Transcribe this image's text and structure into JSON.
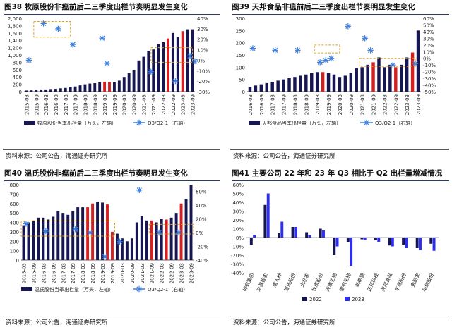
{
  "chart_data": [
    {
      "id": "p1",
      "type": "bar",
      "title": "图38 牧原股份非瘟前后二三季度出栏节奏明显发生变化",
      "categories": [
        "2015-03",
        "2015-06",
        "2015-09",
        "2015-12",
        "2016-03",
        "2016-06",
        "2016-09",
        "2016-12",
        "2017-03",
        "2017-06",
        "2017-09",
        "2017-12",
        "2018-03",
        "2018-06",
        "2018-09",
        "2018-12",
        "2019-03",
        "2019-06",
        "2019-09",
        "2019-12",
        "2020-03",
        "2020-06",
        "2020-09",
        "2020-12",
        "2021-03",
        "2021-06",
        "2021-09",
        "2021-12",
        "2022-03",
        "2022-06",
        "2022-09",
        "2022-12",
        "2023-03",
        "2023-06",
        "2023-09"
      ],
      "tick_labels": [
        "2015-03",
        "2015-09",
        "2016-03",
        "2016-09",
        "2017-03",
        "2017-09",
        "2018-03",
        "2018-09",
        "2019-03",
        "2019-09",
        "2020-03",
        "2020-09",
        "2021-03",
        "2021-09",
        "2022-03",
        "2022-09",
        "2023-03",
        "2023-09"
      ],
      "values": [
        30,
        35,
        45,
        60,
        60,
        70,
        75,
        90,
        100,
        120,
        140,
        170,
        200,
        220,
        230,
        260,
        270,
        260,
        250,
        300,
        400,
        500,
        580,
        850,
        950,
        1100,
        1150,
        1300,
        1350,
        1450,
        1600,
        1500,
        1650,
        1700,
        1700
      ],
      "highlight": [
        16,
        17,
        27,
        28,
        29,
        30,
        31,
        32,
        33,
        34
      ],
      "red": [
        16,
        17,
        29,
        32
      ],
      "line_values": [
        0,
        35,
        30,
        15,
        21,
        -3,
        -11,
        -20,
        4,
        -1
      ],
      "line_positions": [
        1,
        4,
        7,
        10,
        16,
        17,
        26,
        31,
        34,
        35
      ],
      "ylim_left": [
        0,
        2000
      ],
      "yticks_left": [
        0,
        200,
        400,
        600,
        800,
        1000,
        1200,
        1400,
        1600,
        1800,
        2000
      ],
      "ylim_right": [
        -30,
        40
      ],
      "yticks_right": [
        "40%",
        "30%",
        "20%",
        "10%",
        "0%",
        "-10%",
        "-20%",
        "-30%"
      ],
      "legend": [
        "牧原股份当季出栏量（万头，左轴）",
        "Q3/Q2-1（右轴）"
      ],
      "source": "资料来源：公司公告，海通证券研究所"
    },
    {
      "id": "p2",
      "type": "bar",
      "title": "图39 天邦食品非瘟前后二三季度出栏节奏明显发生变化",
      "categories": [
        "2016-03",
        "2016-06",
        "2016-09",
        "2016-12",
        "2017-03",
        "2017-06",
        "2017-09",
        "2017-12",
        "2018-03",
        "2018-06",
        "2018-09",
        "2018-12",
        "2019-03",
        "2019-06",
        "2019-09",
        "2019-12",
        "2020-03",
        "2020-06",
        "2020-09",
        "2020-12",
        "2021-03",
        "2021-06",
        "2021-09",
        "2021-12",
        "2022-03",
        "2022-06",
        "2022-09",
        "2022-12",
        "2023-03",
        "2023-06",
        "2023-09"
      ],
      "tick_labels": [
        "2016-03",
        "2016-09",
        "2017-03",
        "2017-09",
        "2018-03",
        "2018-09",
        "2019-03",
        "2019-09",
        "2020-03",
        "2020-09",
        "2021-03",
        "2021-09",
        "2022-03",
        "2022-09",
        "2023-03",
        "2023-09"
      ],
      "values": [
        20,
        25,
        30,
        35,
        40,
        45,
        50,
        55,
        60,
        65,
        70,
        75,
        80,
        80,
        75,
        70,
        60,
        65,
        75,
        95,
        100,
        110,
        120,
        140,
        100,
        110,
        100,
        110,
        140,
        160,
        250
      ],
      "highlight": [
        12,
        13,
        20,
        21,
        22,
        23,
        24,
        25,
        26,
        27,
        28,
        29
      ],
      "red": [
        13,
        22,
        26,
        29
      ],
      "line_values": [
        15,
        12,
        12,
        -6,
        -3,
        0,
        48,
        30,
        12,
        -10,
        -8
      ],
      "line_positions": [
        1,
        5,
        9,
        13,
        14,
        15,
        18,
        21,
        22,
        26,
        30
      ],
      "ylim_left": [
        0,
        300
      ],
      "yticks_left": [
        0,
        50,
        100,
        150,
        200,
        250,
        300
      ],
      "ylim_right": [
        -50,
        60
      ],
      "yticks_right": [
        "60%",
        "50%",
        "40%",
        "30%",
        "20%",
        "10%",
        "0%",
        "-10%",
        "-20%",
        "-30%",
        "-40%",
        "-50%"
      ],
      "legend": [
        "天邦食品当季出栏量（万头，左轴）",
        "Q3/Q2-1（右轴）"
      ],
      "source": "资料来源：公司公告，海通证券研究所"
    },
    {
      "id": "p3",
      "type": "bar",
      "title": "图40 温氏股份非瘟前后二三季度出栏节奏明显发生变化",
      "categories": [
        "2015-03",
        "2015-06",
        "2015-09",
        "2015-12",
        "2016-03",
        "2016-06",
        "2016-09",
        "2016-12",
        "2017-03",
        "2017-06",
        "2017-09",
        "2017-12",
        "2018-03",
        "2018-06",
        "2018-09",
        "2018-12",
        "2019-03",
        "2019-06",
        "2019-09",
        "2019-12",
        "2020-03",
        "2020-06",
        "2020-09",
        "2020-12",
        "2021-03",
        "2021-06",
        "2021-09",
        "2021-12",
        "2022-03",
        "2022-06",
        "2022-09",
        "2022-12",
        "2023-03",
        "2023-06",
        "2023-09"
      ],
      "tick_labels": [
        "2015-03",
        "2015-09",
        "2016-03",
        "2016-09",
        "2017-03",
        "2017-09",
        "2018-03",
        "2018-09",
        "2019-03",
        "2019-09",
        "2020-03",
        "2020-09",
        "2021-03",
        "2021-09",
        "2022-03",
        "2022-09",
        "2023-03",
        "2023-09"
      ],
      "values": [
        370,
        400,
        420,
        450,
        450,
        430,
        460,
        520,
        500,
        480,
        520,
        560,
        560,
        560,
        600,
        620,
        610,
        590,
        300,
        280,
        230,
        200,
        230,
        400,
        470,
        420,
        420,
        400,
        440,
        430,
        450,
        500,
        600,
        650,
        800
      ],
      "highlight": [
        0,
        1,
        2,
        3,
        4,
        5,
        6,
        7,
        8,
        9,
        10,
        11,
        12,
        13,
        14,
        15,
        16,
        17,
        18,
        26,
        27,
        28,
        29,
        30,
        31,
        32,
        33,
        34
      ],
      "red": [
        13,
        14,
        17,
        18,
        26,
        29,
        32
      ],
      "line_values": [
        13,
        2,
        5,
        0,
        -35,
        -13,
        62,
        0,
        0
      ],
      "line_positions": [
        1,
        5,
        11,
        14,
        17,
        20,
        24,
        28,
        32
      ],
      "ylim_left": [
        0,
        800
      ],
      "yticks_left": [
        0,
        100,
        200,
        300,
        400,
        500,
        600,
        700,
        800
      ],
      "ylim_right": [
        -40,
        70
      ],
      "yticks_right": [
        "60%",
        "40%",
        "20%",
        "0%",
        "-20%",
        "-40%"
      ],
      "legend": [
        "温氏股份当季出栏量（万头，左轴）",
        "Q3/Q2-1（右轴）"
      ],
      "source": "资料来源：公司公告，海通证券研究所"
    },
    {
      "id": "p4",
      "type": "bar",
      "title": "图41 主要公司 22 年和 23 年 Q3 相比于 Q2 出栏量增减情况",
      "categories": [
        "神农集团",
        "京基智农",
        "唐人神",
        "温氏股份",
        "大北农",
        "牧原股份",
        "天康生物",
        "傲农生物",
        "新希望",
        "正邦科技",
        "天邦食品",
        "东瑞股份",
        "金新农",
        "华统股份"
      ],
      "series": [
        {
          "name": "2022",
          "values": [
            -8,
            37,
            5,
            12,
            6,
            10,
            -20,
            -5,
            -2,
            -3,
            -9,
            -8,
            -12,
            -7
          ]
        },
        {
          "name": "2023",
          "values": [
            3,
            50,
            18,
            12,
            3,
            8,
            -10,
            -32,
            -3,
            -5,
            -10,
            -12,
            -14,
            -15
          ]
        }
      ],
      "ylim": [
        -40,
        60
      ],
      "yticks": [
        "60%",
        "50%",
        "40%",
        "30%",
        "20%",
        "10%",
        "0%",
        "-10%",
        "-20%",
        "-30%",
        "-40%"
      ],
      "legend": [
        "2022",
        "2023"
      ],
      "source": "资料来源：公司公告，海通证券研究所"
    }
  ],
  "colors": {
    "navy": "#161652",
    "red": "#d42020",
    "marker": "#3d7fe0",
    "box": "#e0a020",
    "bar22": "#161652",
    "bar23": "#2e2ef0"
  }
}
